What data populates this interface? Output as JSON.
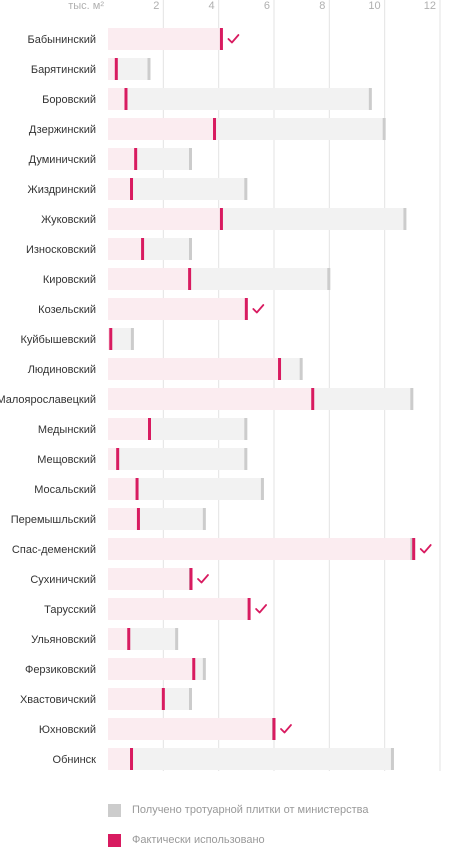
{
  "chart_data": {
    "type": "bar",
    "axis_unit_label": "тыс. м²",
    "xlim": [
      0,
      12
    ],
    "ticks": [
      "2",
      "4",
      "6",
      "8",
      "10",
      "12"
    ],
    "tick_values": [
      2,
      4,
      6,
      8,
      10,
      12
    ],
    "categories": [
      "Бабынинский",
      "Барятинский",
      "Боровский",
      "Дзержинский",
      "Думиничский",
      "Жиздринский",
      "Жуковский",
      "Износковский",
      "Кировский",
      "Козельский",
      "Куйбышевский",
      "Людиновский",
      "Малоярославецкий",
      "Медынский",
      "Мещовский",
      "Мосальский",
      "Перемышльский",
      "Спас-деменский",
      "Сухиничский",
      "Тарусский",
      "Ульяновский",
      "Ферзиковский",
      "Хвастовичский",
      "Юхновский",
      "Обнинск"
    ],
    "series": [
      {
        "name": "Получено тротуарной плитки от министерства",
        "values": [
          3.95,
          1.5,
          9.5,
          10.0,
          3.0,
          5.0,
          10.75,
          3.0,
          8.0,
          4.9,
          0.9,
          7.0,
          11.0,
          5.0,
          5.0,
          5.6,
          3.5,
          11.0,
          3.0,
          5.0,
          2.5,
          3.5,
          3.0,
          6.0,
          10.3
        ]
      },
      {
        "name": "Фактически использовано",
        "values": [
          4.1,
          0.3,
          0.65,
          3.85,
          1.0,
          0.85,
          4.1,
          1.25,
          2.95,
          5.0,
          0.1,
          6.2,
          7.4,
          1.5,
          0.35,
          1.05,
          1.1,
          11.05,
          3.0,
          5.1,
          0.75,
          3.1,
          2.0,
          6.0,
          0.85
        ]
      }
    ],
    "completed": [
      true,
      false,
      false,
      false,
      false,
      false,
      false,
      false,
      false,
      true,
      false,
      false,
      false,
      false,
      false,
      false,
      false,
      true,
      true,
      true,
      false,
      false,
      false,
      true,
      false
    ],
    "colors": {
      "received": "#cccccc",
      "used": "#d81b60",
      "received_bg": "#f2f2f2",
      "used_bg": "#fbecf0",
      "gridline": "#e3e3e3"
    },
    "grid": true
  },
  "legend": {
    "received": "Получено тротуарной плитки от министерства",
    "used": "Фактически использовано"
  }
}
